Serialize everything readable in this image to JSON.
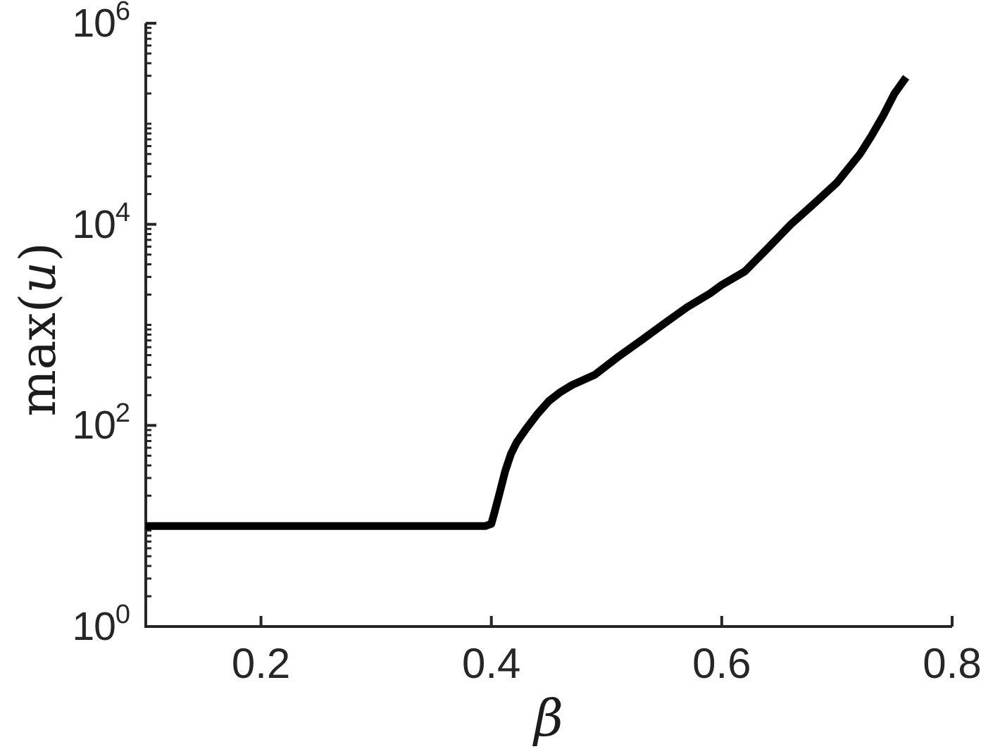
{
  "figure": {
    "background": "#ffffff",
    "axis_color": "#262626",
    "label_color": "#1c1c1c"
  },
  "axis_labels": {
    "y_prefix": "max(",
    "y_var": "u",
    "y_suffix": ")",
    "x": "β"
  },
  "chart_data": {
    "type": "line",
    "title": "",
    "xlabel": "β",
    "ylabel": "max(u)",
    "y_scale": "log",
    "grid": false,
    "legend": null,
    "xlim": [
      0.1,
      0.8
    ],
    "ylim_log10": [
      0,
      6
    ],
    "x_ticks": [
      0.2,
      0.4,
      0.6,
      0.8
    ],
    "x_tick_labels": [
      "0.2",
      "0.4",
      "0.6",
      "0.8"
    ],
    "y_tick_base": "10",
    "y_tick_exponents": [
      0,
      2,
      4,
      6
    ],
    "y_minor_decades": [
      0,
      1,
      2,
      3,
      4,
      5
    ],
    "y_unlabeled_decade_exponents": [
      1,
      3,
      5
    ],
    "series": [
      {
        "name": "max(u)",
        "color": "#000000",
        "line_width": 11,
        "points": [
          [
            0.1,
            10
          ],
          [
            0.15,
            10
          ],
          [
            0.2,
            10
          ],
          [
            0.25,
            10
          ],
          [
            0.3,
            10
          ],
          [
            0.35,
            10
          ],
          [
            0.395,
            10
          ],
          [
            0.4,
            10.5
          ],
          [
            0.403,
            14
          ],
          [
            0.407,
            21
          ],
          [
            0.412,
            35
          ],
          [
            0.417,
            52
          ],
          [
            0.422,
            68
          ],
          [
            0.43,
            92
          ],
          [
            0.44,
            130
          ],
          [
            0.45,
            175
          ],
          [
            0.46,
            215
          ],
          [
            0.47,
            252
          ],
          [
            0.49,
            320
          ],
          [
            0.51,
            480
          ],
          [
            0.53,
            700
          ],
          [
            0.55,
            1030
          ],
          [
            0.57,
            1500
          ],
          [
            0.59,
            2060
          ],
          [
            0.6,
            2500
          ],
          [
            0.62,
            3400
          ],
          [
            0.64,
            5800
          ],
          [
            0.66,
            10000
          ],
          [
            0.68,
            16000
          ],
          [
            0.7,
            26000
          ],
          [
            0.72,
            50000
          ],
          [
            0.73,
            76000
          ],
          [
            0.74,
            120000
          ],
          [
            0.75,
            200000
          ],
          [
            0.76,
            290000
          ]
        ]
      }
    ]
  }
}
